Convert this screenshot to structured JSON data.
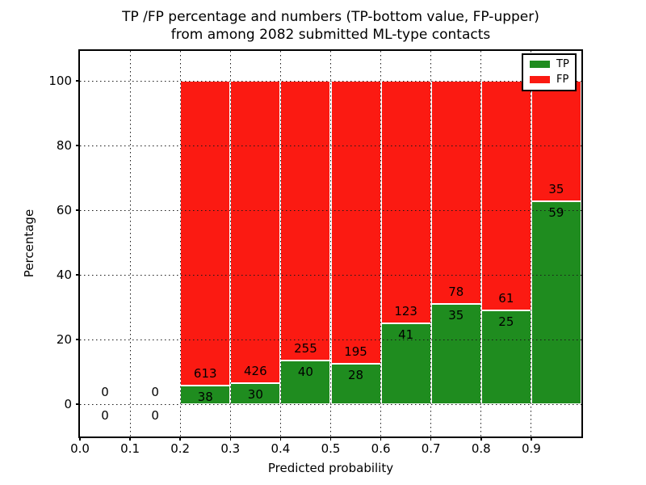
{
  "chart": {
    "title_line1": "TP /FP percentage and numbers (TP-bottom value, FP-upper)",
    "title_line2": "from among 2082 submitted ML-type contacts",
    "xlabel": "Predicted probability",
    "ylabel": "Percentage"
  },
  "chart_data": {
    "type": "bar",
    "stacked": true,
    "normalized_to_percent": true,
    "title": "TP /FP percentage and numbers (TP-bottom value, FP-upper)\nfrom among 2082 submitted ML-type contacts",
    "xlabel": "Predicted probability",
    "ylabel": "Percentage",
    "total_contacts": 2082,
    "xlim": [
      0.0,
      1.0
    ],
    "ylim": [
      -10,
      109.5
    ],
    "x_tick_labels": [
      "0.0",
      "0.1",
      "0.2",
      "0.3",
      "0.4",
      "0.5",
      "0.6",
      "0.7",
      "0.8",
      "0.9"
    ],
    "y_tick_values": [
      0,
      20,
      40,
      60,
      80,
      100
    ],
    "grid": "dotted",
    "legend_position": "upper right",
    "series": [
      {
        "name": "TP",
        "color": "#1f8c1f"
      },
      {
        "name": "FP",
        "color": "#fb1a12"
      }
    ],
    "bins": [
      {
        "x_start": 0.0,
        "x_end": 0.1,
        "tp_count": 0,
        "fp_count": 0
      },
      {
        "x_start": 0.1,
        "x_end": 0.2,
        "tp_count": 0,
        "fp_count": 0
      },
      {
        "x_start": 0.2,
        "x_end": 0.3,
        "tp_count": 38,
        "fp_count": 613
      },
      {
        "x_start": 0.3,
        "x_end": 0.4,
        "tp_count": 30,
        "fp_count": 426
      },
      {
        "x_start": 0.4,
        "x_end": 0.5,
        "tp_count": 40,
        "fp_count": 255
      },
      {
        "x_start": 0.5,
        "x_end": 0.6,
        "tp_count": 28,
        "fp_count": 195
      },
      {
        "x_start": 0.6,
        "x_end": 0.7,
        "tp_count": 41,
        "fp_count": 123
      },
      {
        "x_start": 0.7,
        "x_end": 0.8,
        "tp_count": 35,
        "fp_count": 78
      },
      {
        "x_start": 0.8,
        "x_end": 0.9,
        "tp_count": 25,
        "fp_count": 61
      },
      {
        "x_start": 0.9,
        "x_end": 1.0,
        "tp_count": 59,
        "fp_count": 35
      }
    ]
  }
}
